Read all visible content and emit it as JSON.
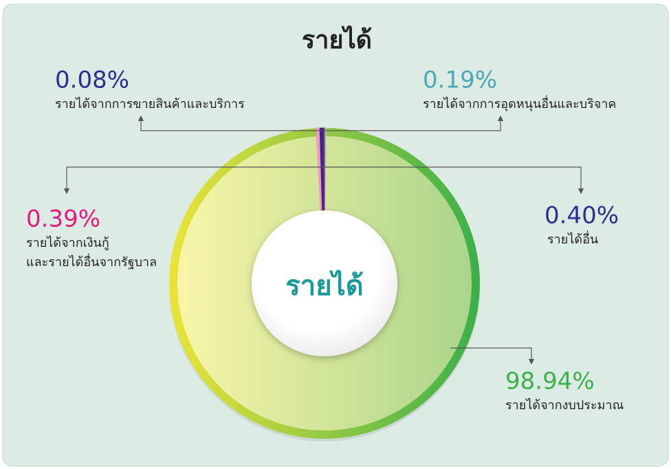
{
  "chart_data": {
    "type": "pie",
    "title": "รายได้",
    "center_label": "รายได้",
    "categories": [
      [
        "รายได้จากการอุดหนุนอื่นและบริจาค"
      ],
      [
        "รายได้จากงบประมาณ"
      ],
      [
        "รายได้จากเงินกู้",
        "และรายได้อื่นจากรัฐบาล"
      ],
      [
        "รายได้อื่น"
      ],
      [
        "รายได้จากการขายสินค้าและบริการ"
      ]
    ],
    "values": [
      0.19,
      98.94,
      0.39,
      0.4,
      0.08
    ],
    "value_labels": [
      "0.19%",
      "98.94%",
      "0.39%",
      "0.40%",
      "0.08%"
    ],
    "colors": [
      "#8fd0e0",
      "#3cb04a",
      "#f29ab8",
      "#2b2f8f",
      "#c2185b"
    ],
    "label_colors": [
      "#4aa8b8",
      "#3cb04a",
      "#e6197e",
      "#2b2f8f",
      "#2b2f8f"
    ]
  }
}
